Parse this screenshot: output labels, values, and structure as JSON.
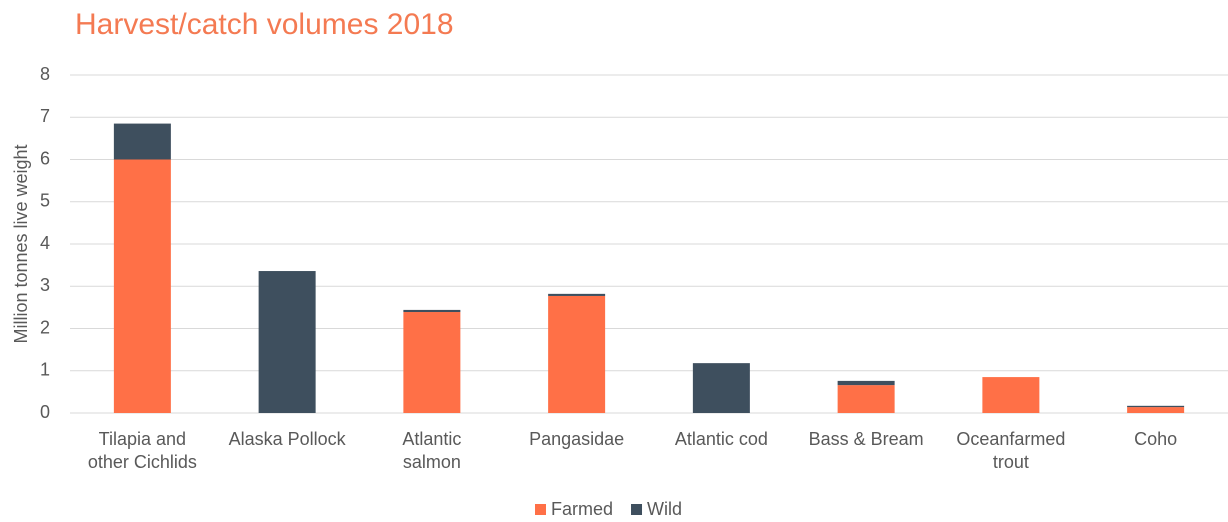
{
  "chart_data": {
    "type": "stacked_bar",
    "title": "Harvest/catch volumes 2018",
    "y_label": "Million tonnes live weight",
    "categories": [
      "Tilapia and other Cichlids",
      "Alaska Pollock",
      "Atlantic salmon",
      "Pangasidae",
      "Atlantic cod",
      "Bass & Bream",
      "Oceanfarmed trout",
      "Coho"
    ],
    "series": [
      {
        "name": "Farmed",
        "color": "#ff7047",
        "values": [
          6.0,
          0,
          2.39,
          2.77,
          0,
          0.66,
          0.85,
          0.14
        ]
      },
      {
        "name": "Wild",
        "color": "#3e4f5e",
        "values": [
          0.85,
          3.36,
          0.05,
          0.05,
          1.18,
          0.1,
          0,
          0.03
        ]
      }
    ],
    "ylim": [
      0,
      8
    ],
    "yticks": [
      0,
      1,
      2,
      3,
      4,
      5,
      6,
      7,
      8
    ],
    "grid": true,
    "legend": "bottom"
  }
}
